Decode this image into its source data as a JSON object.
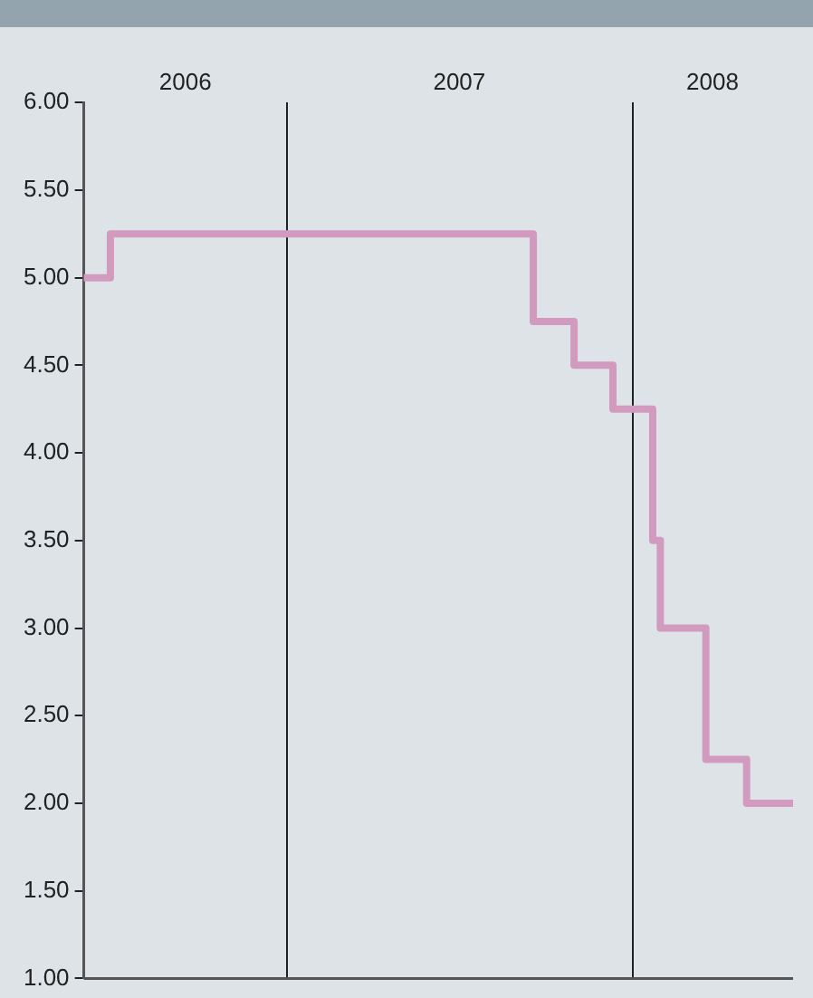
{
  "chart_data": {
    "type": "step",
    "x": [
      "2006-06-01",
      "2006-06-29",
      "2007-09-18",
      "2007-10-31",
      "2007-12-11",
      "2008-01-22",
      "2008-01-30",
      "2008-03-18",
      "2008-04-30",
      "2008-06-18"
    ],
    "series": [
      {
        "color": "#d39ac0",
        "values": [
          5.0,
          5.25,
          4.75,
          4.5,
          4.25,
          3.5,
          3.0,
          2.25,
          2.0,
          2.0
        ]
      }
    ],
    "xlim": [
      "2006-06-01",
      "2008-06-18"
    ],
    "xticks": [
      {
        "value": "2006-09-16",
        "label": "2006"
      },
      {
        "value": "2007-01-01",
        "label": null
      },
      {
        "value": "2007-07-02",
        "label": "2007"
      },
      {
        "value": "2008-01-01",
        "label": null
      },
      {
        "value": "2008-03-25",
        "label": "2008"
      }
    ],
    "ylim": [
      1,
      6
    ],
    "yticks": [
      {
        "value": 1,
        "label": "1.00"
      },
      {
        "value": 1.5,
        "label": "1.50"
      },
      {
        "value": 2,
        "label": "2.00"
      },
      {
        "value": 2.5,
        "label": "2.50"
      },
      {
        "value": 3,
        "label": "3.00"
      },
      {
        "value": 3.5,
        "label": "3.50"
      },
      {
        "value": 4,
        "label": "4.00"
      },
      {
        "value": 4.5,
        "label": "4.50"
      },
      {
        "value": 5,
        "label": "5.00"
      },
      {
        "value": 5.5,
        "label": "5.50"
      },
      {
        "value": 6,
        "label": "6.00"
      }
    ],
    "grid": "x",
    "legend": false,
    "marker": "none",
    "line_style": "solid"
  }
}
